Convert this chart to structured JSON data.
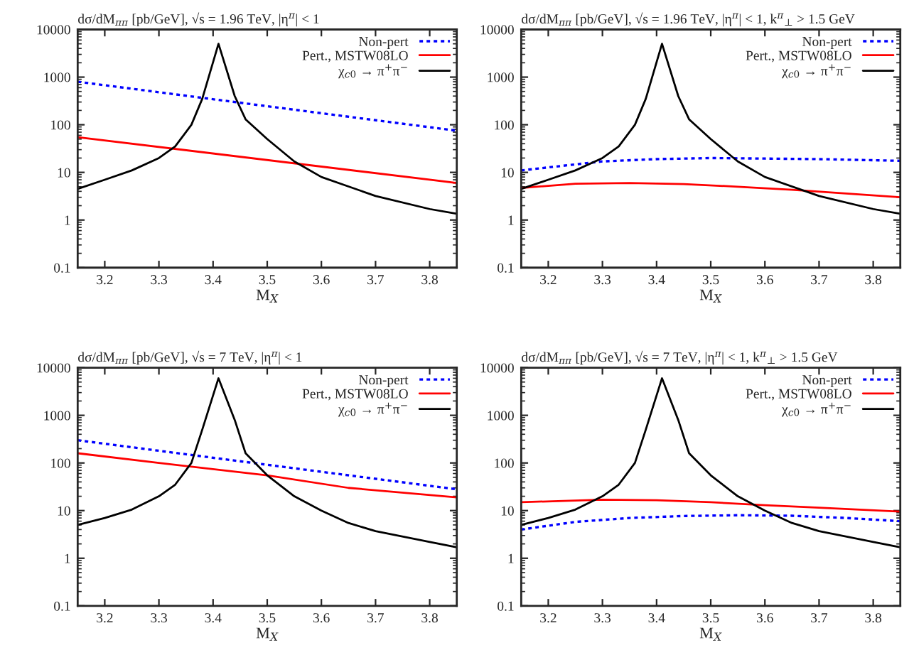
{
  "chart_data": [
    {
      "type": "line",
      "title": "dσ/dM$_{ππ}$ [pb/GeV], √s = 1.96 TeV, |η$^{π}$| < 1",
      "xlabel": "M$_{X}$",
      "log": "y",
      "xlim": [
        3.15,
        3.85
      ],
      "ylim": [
        0.1,
        10000
      ],
      "xticks": [
        3.2,
        3.3,
        3.4,
        3.5,
        3.6,
        3.7,
        3.8
      ],
      "yticks": [
        0.1,
        1,
        10,
        100,
        1000,
        10000
      ],
      "legend": "top right",
      "grid": false,
      "series": [
        {
          "name": "Non-pert",
          "color": "#0000ff",
          "line_style": "dotted",
          "x": [
            3.15,
            3.85
          ],
          "values": [
            800,
            75
          ]
        },
        {
          "name": "Pert., MSTW08LO",
          "color": "#ff0000",
          "line_style": "solid",
          "x": [
            3.15,
            3.85
          ],
          "values": [
            55,
            6
          ]
        },
        {
          "name": "χ$_{c0}$ → π$^{+}$π$^{−}$",
          "color": "#000000",
          "line_style": "solid",
          "x": [
            3.15,
            3.2,
            3.25,
            3.3,
            3.33,
            3.36,
            3.38,
            3.41,
            3.44,
            3.46,
            3.5,
            3.55,
            3.6,
            3.7,
            3.8,
            3.85
          ],
          "values": [
            4.5,
            7,
            11,
            20,
            35,
            100,
            350,
            5000,
            400,
            130,
            50,
            17,
            8,
            3.2,
            1.7,
            1.35
          ]
        }
      ]
    },
    {
      "type": "line",
      "title": "dσ/dM$_{ππ}$ [pb/GeV], √s = 1.96 TeV, |η$^{π}$| < 1, k$^{π}$$_{⊥}$ > 1.5 GeV",
      "xlabel": "M$_{X}$",
      "log": "y",
      "xlim": [
        3.15,
        3.85
      ],
      "ylim": [
        0.1,
        10000
      ],
      "xticks": [
        3.2,
        3.3,
        3.4,
        3.5,
        3.6,
        3.7,
        3.8
      ],
      "yticks": [
        0.1,
        1,
        10,
        100,
        1000,
        10000
      ],
      "legend": "top right",
      "grid": false,
      "series": [
        {
          "name": "Non-pert",
          "color": "#0000ff",
          "line_style": "dotted",
          "x": [
            3.15,
            3.3,
            3.4,
            3.5,
            3.6,
            3.7,
            3.85
          ],
          "values": [
            11,
            17,
            19,
            20,
            19.5,
            19,
            17.5
          ]
        },
        {
          "name": "Pert., MSTW08LO",
          "color": "#ff0000",
          "line_style": "solid",
          "x": [
            3.15,
            3.25,
            3.35,
            3.45,
            3.55,
            3.65,
            3.75,
            3.85
          ],
          "values": [
            4.7,
            5.8,
            6,
            5.7,
            5,
            4.3,
            3.6,
            3.0
          ]
        },
        {
          "name": "χ$_{c0}$ → π$^{+}$π$^{−}$",
          "color": "#000000",
          "line_style": "solid",
          "x": [
            3.15,
            3.2,
            3.25,
            3.3,
            3.33,
            3.36,
            3.38,
            3.41,
            3.44,
            3.46,
            3.5,
            3.55,
            3.6,
            3.7,
            3.8,
            3.85
          ],
          "values": [
            4.5,
            7,
            11,
            20,
            35,
            100,
            350,
            5000,
            400,
            130,
            50,
            17,
            8,
            3.2,
            1.7,
            1.35
          ]
        }
      ]
    },
    {
      "type": "line",
      "title": "dσ/dM$_{ππ}$ [pb/GeV], √s = 7 TeV, |η$^{π}$| < 1",
      "xlabel": "M$_{X}$",
      "log": "y",
      "xlim": [
        3.15,
        3.85
      ],
      "ylim": [
        0.1,
        10000
      ],
      "xticks": [
        3.2,
        3.3,
        3.4,
        3.5,
        3.6,
        3.7,
        3.8
      ],
      "yticks": [
        0.1,
        1,
        10,
        100,
        1000,
        10000
      ],
      "legend": "top right",
      "grid": false,
      "series": [
        {
          "name": "Non-pert",
          "color": "#0000ff",
          "line_style": "dotted",
          "x": [
            3.15,
            3.85
          ],
          "values": [
            300,
            28
          ]
        },
        {
          "name": "Pert., MSTW08LO",
          "color": "#ff0000",
          "line_style": "solid",
          "x": [
            3.15,
            3.3,
            3.5,
            3.65,
            3.85
          ],
          "values": [
            160,
            100,
            55,
            30,
            19
          ]
        },
        {
          "name": "χ$_{c0}$ → π$^{+}$π$^{−}$",
          "color": "#000000",
          "line_style": "solid",
          "x": [
            3.15,
            3.2,
            3.25,
            3.3,
            3.33,
            3.36,
            3.38,
            3.41,
            3.44,
            3.46,
            3.5,
            3.55,
            3.6,
            3.65,
            3.7,
            3.8,
            3.85
          ],
          "values": [
            5,
            7,
            10.5,
            20,
            35,
            100,
            500,
            6000,
            800,
            160,
            55,
            20,
            10,
            5.5,
            3.7,
            2.2,
            1.7
          ]
        }
      ]
    },
    {
      "type": "line",
      "title": "dσ/dM$_{ππ}$ [pb/GeV], √s = 7 TeV, |η$^{π}$| < 1, k$^{π}$$_{⊥}$ > 1.5 GeV",
      "xlabel": "M$_{X}$",
      "log": "y",
      "xlim": [
        3.15,
        3.85
      ],
      "ylim": [
        0.1,
        10000
      ],
      "xticks": [
        3.2,
        3.3,
        3.4,
        3.5,
        3.6,
        3.7,
        3.8
      ],
      "yticks": [
        0.1,
        1,
        10,
        100,
        1000,
        10000
      ],
      "legend": "top right",
      "grid": false,
      "series": [
        {
          "name": "Non-pert",
          "color": "#0000ff",
          "line_style": "dotted",
          "x": [
            3.15,
            3.25,
            3.35,
            3.45,
            3.55,
            3.65,
            3.75,
            3.85
          ],
          "values": [
            4,
            5.8,
            7,
            7.7,
            8,
            7.8,
            7,
            6
          ]
        },
        {
          "name": "Pert., MSTW08LO",
          "color": "#ff0000",
          "line_style": "solid",
          "x": [
            3.15,
            3.3,
            3.4,
            3.5,
            3.6,
            3.7,
            3.85
          ],
          "values": [
            15,
            17,
            16.5,
            15,
            13,
            11.5,
            9.5
          ]
        },
        {
          "name": "χ$_{c0}$ → π$^{+}$π$^{−}$",
          "color": "#000000",
          "line_style": "solid",
          "x": [
            3.15,
            3.2,
            3.25,
            3.3,
            3.33,
            3.36,
            3.38,
            3.41,
            3.44,
            3.46,
            3.5,
            3.55,
            3.6,
            3.65,
            3.7,
            3.8,
            3.85
          ],
          "values": [
            5,
            7,
            10.5,
            20,
            35,
            100,
            500,
            6000,
            800,
            160,
            55,
            20,
            10,
            5.5,
            3.7,
            2.2,
            1.7
          ]
        }
      ]
    }
  ]
}
